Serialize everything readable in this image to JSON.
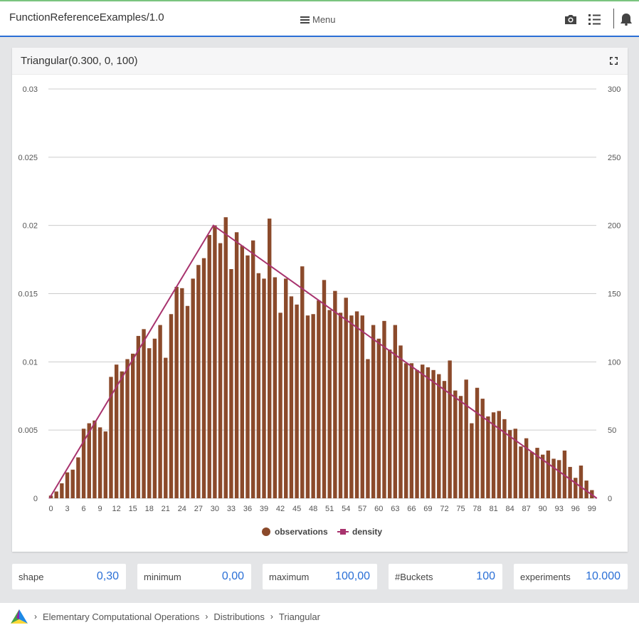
{
  "topbar": {
    "app_title": "FunctionReferenceExamples/1.0",
    "menu_label": "Menu"
  },
  "card": {
    "title": "Triangular(0.300, 0, 100)"
  },
  "chart_data": {
    "type": "bar",
    "x_tick_labels": [
      "0",
      "3",
      "6",
      "9",
      "12",
      "15",
      "18",
      "21",
      "24",
      "27",
      "30",
      "33",
      "36",
      "39",
      "42",
      "45",
      "48",
      "51",
      "54",
      "57",
      "60",
      "63",
      "66",
      "69",
      "72",
      "75",
      "78",
      "81",
      "84",
      "87",
      "90",
      "93",
      "96",
      "99"
    ],
    "left_axis": {
      "ylim": [
        0,
        0.03
      ],
      "ticks": [
        "0",
        "0.005",
        "0.01",
        "0.015",
        "0.02",
        "0.025",
        "0.03"
      ]
    },
    "right_axis": {
      "ylim": [
        0,
        300
      ],
      "ticks": [
        "0",
        "50",
        "100",
        "150",
        "200",
        "250",
        "300"
      ]
    },
    "grid": true,
    "legend_position": "bottom",
    "series": [
      {
        "name": "observations",
        "axis": "right",
        "color": "#8b4a2b",
        "x": [
          0,
          1,
          2,
          3,
          4,
          5,
          6,
          7,
          8,
          9,
          10,
          11,
          12,
          13,
          14,
          15,
          16,
          17,
          18,
          19,
          20,
          21,
          22,
          23,
          24,
          25,
          26,
          27,
          28,
          29,
          30,
          31,
          32,
          33,
          34,
          35,
          36,
          37,
          38,
          39,
          40,
          41,
          42,
          43,
          44,
          45,
          46,
          47,
          48,
          49,
          50,
          51,
          52,
          53,
          54,
          55,
          56,
          57,
          58,
          59,
          60,
          61,
          62,
          63,
          64,
          65,
          66,
          67,
          68,
          69,
          70,
          71,
          72,
          73,
          74,
          75,
          76,
          77,
          78,
          79,
          80,
          81,
          82,
          83,
          84,
          85,
          86,
          87,
          88,
          89,
          90,
          91,
          92,
          93,
          94,
          95,
          96,
          97,
          98,
          99
        ],
        "values": [
          2,
          5,
          11,
          19,
          21,
          30,
          51,
          55,
          57,
          52,
          49,
          89,
          98,
          93,
          102,
          106,
          119,
          124,
          110,
          117,
          127,
          103,
          135,
          155,
          154,
          141,
          161,
          171,
          176,
          193,
          200,
          187,
          206,
          168,
          195,
          185,
          178,
          189,
          165,
          161,
          205,
          162,
          136,
          161,
          148,
          142,
          170,
          134,
          135,
          145,
          160,
          138,
          152,
          136,
          147,
          134,
          137,
          134,
          102,
          127,
          117,
          130,
          109,
          127,
          112,
          99,
          99,
          94,
          98,
          96,
          94,
          91,
          86,
          101,
          79,
          75,
          87,
          55,
          81,
          73,
          60,
          63,
          64,
          58,
          50,
          51,
          38,
          44,
          34,
          37,
          32,
          35,
          29,
          28,
          35,
          23,
          15,
          24,
          13,
          6
        ]
      },
      {
        "name": "density",
        "axis": "left",
        "type": "line",
        "color": "#a8336e",
        "points": [
          [
            0,
            0
          ],
          [
            30,
            0.02
          ],
          [
            100,
            0
          ]
        ]
      }
    ]
  },
  "params": [
    {
      "label": "shape",
      "value": "0,30"
    },
    {
      "label": "minimum",
      "value": "0,00"
    },
    {
      "label": "maximum",
      "value": "100,00"
    },
    {
      "label": "#Buckets",
      "value": "100"
    },
    {
      "label": "experiments",
      "value": "10.000"
    }
  ],
  "breadcrumb": [
    "Elementary Computational Operations",
    "Distributions",
    "Triangular"
  ],
  "icons": {
    "menu": "hamburger-icon",
    "camera": "camera-icon",
    "list": "list-icon",
    "bell": "bell-icon",
    "expand": "expand-icon",
    "logo": "app-logo-icon"
  },
  "colors": {
    "accent": "#2a6fd6",
    "bar": "#8b4a2b",
    "density_line": "#a8336e"
  }
}
